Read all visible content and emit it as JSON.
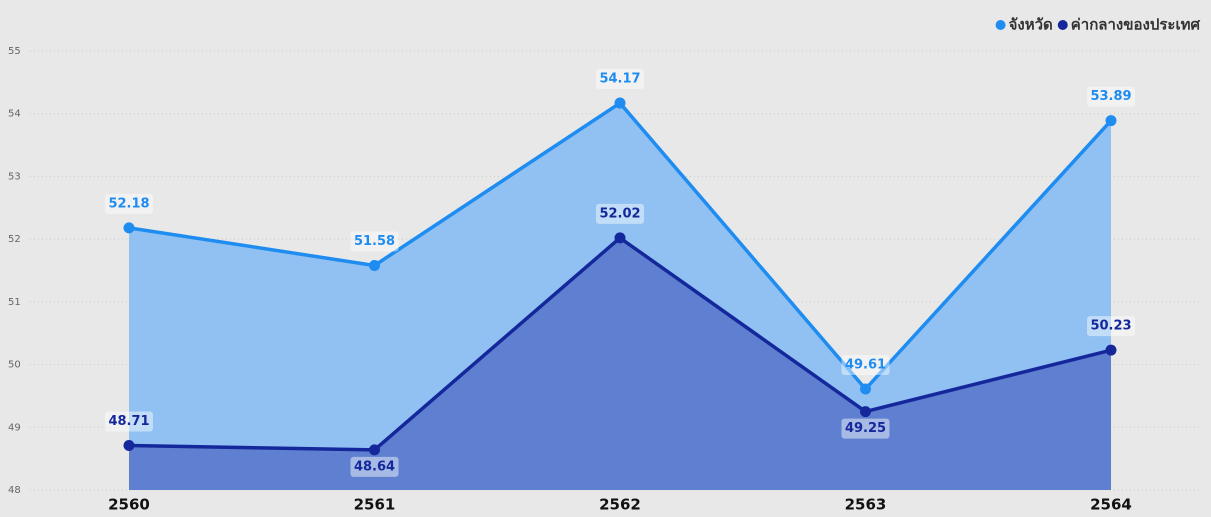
{
  "chart_data": {
    "type": "area",
    "categories": [
      "2560",
      "2561",
      "2562",
      "2563",
      "2564"
    ],
    "series": [
      {
        "name": "จังหวัด",
        "color": "#1e8cf0",
        "fill": "#90c1f2",
        "values": [
          52.18,
          51.58,
          54.17,
          49.61,
          53.89
        ]
      },
      {
        "name": "ค่ากลางของประเทศ",
        "color": "#14289c",
        "fill": "#5f80d0",
        "values": [
          48.71,
          48.64,
          52.02,
          49.25,
          50.23
        ]
      }
    ],
    "ylim": [
      48,
      55
    ],
    "yticks": [
      48,
      49,
      50,
      51,
      52,
      53,
      54,
      55
    ],
    "grid": true,
    "legend": "top-right",
    "data_labels": true
  }
}
